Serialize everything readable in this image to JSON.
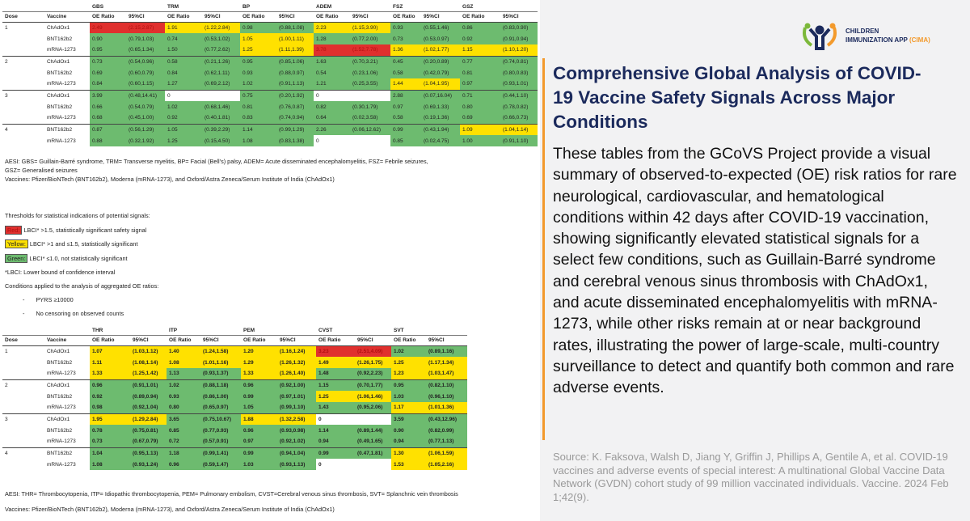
{
  "colors": {
    "red": "#e0302e",
    "yellow": "#ffe100",
    "green": "#6dbb6f",
    "accent": "#f39a2c",
    "title": "#1b2a5c"
  },
  "table_top": {
    "headers": {
      "dose": "Dose",
      "vaccine": "Vaccine",
      "oe": "OE Ratio",
      "ci": "95%CI"
    },
    "conditions": [
      "GBS",
      "TRM",
      "BP",
      "ADEM",
      "FSZ",
      "GSZ"
    ],
    "rows": [
      {
        "dose": "1",
        "vaccine": "ChAdOx1",
        "cells": [
          [
            "2.49",
            "(2.15,2.87)",
            "r"
          ],
          [
            "1.91",
            "(1.22,2.84)",
            "y"
          ],
          [
            "0.98",
            "(0.88,1.08)",
            "g"
          ],
          [
            "2.23",
            "(1.15,3.90)",
            "y"
          ],
          [
            "0.93",
            "(0.55,1.46)",
            "g"
          ],
          [
            "0.86",
            "(0.83,0.90)",
            "g"
          ]
        ]
      },
      {
        "dose": "",
        "vaccine": "BNT162b2",
        "cells": [
          [
            "0.90",
            "(0.79,1.03)",
            "g"
          ],
          [
            "0.74",
            "(0.53,1.02)",
            "g"
          ],
          [
            "1.05",
            "(1.00,1.11)",
            "y"
          ],
          [
            "1.28",
            "(0.77,2.00)",
            "g"
          ],
          [
            "0.73",
            "(0.53,0.97)",
            "g"
          ],
          [
            "0.92",
            "(0.91,0.94)",
            "g"
          ]
        ]
      },
      {
        "dose": "",
        "vaccine": "mRNA-1273",
        "cells": [
          [
            "0.95",
            "(0.65,1.34)",
            "g"
          ],
          [
            "1.50",
            "(0.77,2.62)",
            "g"
          ],
          [
            "1.25",
            "(1.11,1.39)",
            "y"
          ],
          [
            "3.78",
            "(1.52,7.78)",
            "r"
          ],
          [
            "1.36",
            "(1.02,1.77)",
            "y"
          ],
          [
            "1.15",
            "(1.10,1.20)",
            "y"
          ]
        ]
      },
      {
        "dose": "2",
        "vaccine": "ChAdOx1",
        "cells": [
          [
            "0.73",
            "(0.54,0.96)",
            "g"
          ],
          [
            "0.58",
            "(0.21,1.26)",
            "g"
          ],
          [
            "0.95",
            "(0.85,1.06)",
            "g"
          ],
          [
            "1.63",
            "(0.70,3.21)",
            "g"
          ],
          [
            "0.45",
            "(0.20,0.89)",
            "g"
          ],
          [
            "0.77",
            "(0.74,0.81)",
            "g"
          ]
        ]
      },
      {
        "dose": "",
        "vaccine": "BNT162b2",
        "cells": [
          [
            "0.69",
            "(0.60,0.79)",
            "g"
          ],
          [
            "0.84",
            "(0.62,1.11)",
            "g"
          ],
          [
            "0.93",
            "(0.88,0.97)",
            "g"
          ],
          [
            "0.54",
            "(0.23,1.06)",
            "g"
          ],
          [
            "0.58",
            "(0.42,0.79)",
            "g"
          ],
          [
            "0.81",
            "(0.80,0.83)",
            "g"
          ]
        ]
      },
      {
        "dose": "",
        "vaccine": "mRNA-1273",
        "cells": [
          [
            "0.84",
            "(0.60,1.15)",
            "g"
          ],
          [
            "1.27",
            "(0.69,2.12)",
            "g"
          ],
          [
            "1.02",
            "(0.91,1.13)",
            "g"
          ],
          [
            "1.21",
            "(0.25,3.55)",
            "g"
          ],
          [
            "1.44",
            "(1.04,1.95)",
            "y"
          ],
          [
            "0.97",
            "(0.93,1.01)",
            "g"
          ]
        ]
      },
      {
        "dose": "3",
        "vaccine": "ChAdOx1",
        "cells": [
          [
            "3.99",
            "(0.48,14.41)",
            "g"
          ],
          [
            "0",
            "",
            "w"
          ],
          [
            "0.75",
            "(0.20,1.92)",
            "g"
          ],
          [
            "0",
            "",
            "w"
          ],
          [
            "2.88",
            "(0.07,16.04)",
            "g"
          ],
          [
            "0.71",
            "(0.44,1.10)",
            "g"
          ]
        ]
      },
      {
        "dose": "",
        "vaccine": "BNT162b2",
        "cells": [
          [
            "0.66",
            "(0.54,0.79)",
            "g"
          ],
          [
            "1.02",
            "(0.68,1.46)",
            "g"
          ],
          [
            "0.81",
            "(0.76,0.87)",
            "g"
          ],
          [
            "0.82",
            "(0.30,1.79)",
            "g"
          ],
          [
            "0.97",
            "(0.69,1.33)",
            "g"
          ],
          [
            "0.80",
            "(0.78,0.82)",
            "g"
          ]
        ]
      },
      {
        "dose": "",
        "vaccine": "mRNA-1273",
        "cells": [
          [
            "0.68",
            "(0.45,1.00)",
            "g"
          ],
          [
            "0.92",
            "(0.40,1.81)",
            "g"
          ],
          [
            "0.83",
            "(0.74,0.94)",
            "g"
          ],
          [
            "0.64",
            "(0.02,3.58)",
            "g"
          ],
          [
            "0.58",
            "(0.19,1.36)",
            "g"
          ],
          [
            "0.69",
            "(0.66,0.73)",
            "g"
          ]
        ]
      },
      {
        "dose": "4",
        "vaccine": "BNT162b2",
        "cells": [
          [
            "0.87",
            "(0.56,1.29)",
            "g"
          ],
          [
            "1.05",
            "(0.39,2.29)",
            "g"
          ],
          [
            "1.14",
            "(0.99,1.29)",
            "g"
          ],
          [
            "2.26",
            "(0.06,12.62)",
            "g"
          ],
          [
            "0.99",
            "(0.43,1.94)",
            "g"
          ],
          [
            "1.09",
            "(1.04,1.14)",
            "y"
          ]
        ]
      },
      {
        "dose": "",
        "vaccine": "mRNA-1273",
        "cells": [
          [
            "0.88",
            "(0.32,1.92)",
            "g"
          ],
          [
            "1.25",
            "(0.15,4.50)",
            "g"
          ],
          [
            "1.08",
            "(0.83,1.38)",
            "g"
          ],
          [
            "0",
            "",
            "w"
          ],
          [
            "0.85",
            "(0.02,4.75)",
            "g"
          ],
          [
            "1.00",
            "(0.91,1.10)",
            "g"
          ]
        ]
      }
    ]
  },
  "notes_top": {
    "aesi": "AESI: GBS= Guillain-Barré syndrome, TRM= Transverse myelitis, BP= Facial (Bell's) palsy, ADEM= Acute disseminated encephalomyelitis, FSZ= Febrile seizures,",
    "aesi2": "GSZ= Generalised seizures",
    "vaccines": "Vaccines: Pfizer/BioNTech (BNT162b2), Moderna (mRNA-1273), and Oxford/Astra Zeneca/Serum Institute of India (ChAdOx1)",
    "thresholds": "Thresholds for statistical indications of potential signals:",
    "red_tag": "Red:",
    "red_text": "LBCI* >1.5, statistically significant safety signal",
    "yellow_tag": "Yellow:",
    "yellow_text": "LBCI* >1 and ≤1.5, statistically significant",
    "green_tag": "Green:",
    "green_text": "LBCI* ≤1.0, not statistically significant",
    "lbci": "*LBCI: Lower bound of confidence interval",
    "conditions": "Conditions applied to the analysis of aggregated OE ratios:",
    "cond1": "PYRS ≥10000",
    "cond2": "No censoring on observed counts",
    "dash": "-"
  },
  "table_bottom": {
    "conditions": [
      "THR",
      "ITP",
      "PEM",
      "CVST",
      "SVT"
    ],
    "rows": [
      {
        "dose": "1",
        "vaccine": "ChAdOx1",
        "cells": [
          [
            "1.07",
            "(1.03,1.12)",
            "y"
          ],
          [
            "1.40",
            "(1.24,1.58)",
            "y"
          ],
          [
            "1.20",
            "(1.16,1.24)",
            "y"
          ],
          [
            "3.23",
            "(2.51,4.09)",
            "r"
          ],
          [
            "1.02",
            "(0.89,1.16)",
            "g"
          ]
        ]
      },
      {
        "dose": "",
        "vaccine": "BNT162b2",
        "cells": [
          [
            "1.11",
            "(1.08,1.14)",
            "y"
          ],
          [
            "1.08",
            "(1.01,1.16)",
            "y"
          ],
          [
            "1.29",
            "(1.26,1.32)",
            "y"
          ],
          [
            "1.49",
            "(1.26,1.75)",
            "y"
          ],
          [
            "1.25",
            "(1.17,1.34)",
            "y"
          ]
        ]
      },
      {
        "dose": "",
        "vaccine": "mRNA-1273",
        "cells": [
          [
            "1.33",
            "(1.25,1.42)",
            "y"
          ],
          [
            "1.13",
            "(0.93,1.37)",
            "g"
          ],
          [
            "1.33",
            "(1.26,1.40)",
            "y"
          ],
          [
            "1.48",
            "(0.92,2.23)",
            "g"
          ],
          [
            "1.23",
            "(1.03,1.47)",
            "y"
          ]
        ]
      },
      {
        "dose": "2",
        "vaccine": "ChAdOx1",
        "cells": [
          [
            "0.96",
            "(0.91,1.01)",
            "g"
          ],
          [
            "1.02",
            "(0.88,1.18)",
            "g"
          ],
          [
            "0.96",
            "(0.92,1.00)",
            "g"
          ],
          [
            "1.15",
            "(0.70,1.77)",
            "g"
          ],
          [
            "0.95",
            "(0.82,1.10)",
            "g"
          ]
        ]
      },
      {
        "dose": "",
        "vaccine": "BNT162b2",
        "cells": [
          [
            "0.92",
            "(0.89,0.94)",
            "g"
          ],
          [
            "0.93",
            "(0.86,1.00)",
            "g"
          ],
          [
            "0.99",
            "(0.97,1.01)",
            "g"
          ],
          [
            "1.25",
            "(1.06,1.46)",
            "y"
          ],
          [
            "1.03",
            "(0.96,1.10)",
            "g"
          ]
        ]
      },
      {
        "dose": "",
        "vaccine": "mRNA-1273",
        "cells": [
          [
            "0.98",
            "(0.92,1.04)",
            "g"
          ],
          [
            "0.80",
            "(0.65,0.97)",
            "g"
          ],
          [
            "1.05",
            "(0.99,1.10)",
            "g"
          ],
          [
            "1.43",
            "(0.95,2.06)",
            "g"
          ],
          [
            "1.17",
            "(1.01,1.36)",
            "y"
          ]
        ]
      },
      {
        "dose": "3",
        "vaccine": "ChAdOx1",
        "cells": [
          [
            "1.95",
            "(1.29,2.84)",
            "y"
          ],
          [
            "3.65",
            "(0.75,10.67)",
            "g"
          ],
          [
            "1.88",
            "(1.32,2.58)",
            "y"
          ],
          [
            "0",
            "",
            "w"
          ],
          [
            "3.59",
            "(0.43,12.96)",
            "g"
          ]
        ]
      },
      {
        "dose": "",
        "vaccine": "BNT162b2",
        "cells": [
          [
            "0.78",
            "(0.75,0.81)",
            "g"
          ],
          [
            "0.85",
            "(0.77,0.93)",
            "g"
          ],
          [
            "0.96",
            "(0.93,0.98)",
            "g"
          ],
          [
            "1.14",
            "(0.89,1.44)",
            "g"
          ],
          [
            "0.90",
            "(0.82,0.99)",
            "g"
          ]
        ]
      },
      {
        "dose": "",
        "vaccine": "mRNA-1273",
        "cells": [
          [
            "0.73",
            "(0.67,0.79)",
            "g"
          ],
          [
            "0.72",
            "(0.57,0.91)",
            "g"
          ],
          [
            "0.97",
            "(0.92,1.02)",
            "g"
          ],
          [
            "0.94",
            "(0.49,1.65)",
            "g"
          ],
          [
            "0.94",
            "(0.77,1.13)",
            "g"
          ]
        ]
      },
      {
        "dose": "4",
        "vaccine": "BNT162b2",
        "cells": [
          [
            "1.04",
            "(0.95,1.13)",
            "g"
          ],
          [
            "1.18",
            "(0.99,1.41)",
            "g"
          ],
          [
            "0.99",
            "(0.94,1.04)",
            "g"
          ],
          [
            "0.99",
            "(0.47,1.81)",
            "g"
          ],
          [
            "1.30",
            "(1.06,1.59)",
            "y"
          ]
        ]
      },
      {
        "dose": "",
        "vaccine": "mRNA-1273",
        "cells": [
          [
            "1.08",
            "(0.93,1.24)",
            "g"
          ],
          [
            "0.96",
            "(0.59,1.47)",
            "g"
          ],
          [
            "1.03",
            "(0.93,1.13)",
            "g"
          ],
          [
            "0",
            "",
            "w"
          ],
          [
            "1.53",
            "(1.05,2.16)",
            "y"
          ]
        ]
      }
    ]
  },
  "notes_bottom": {
    "aesi": "AESI: THR= Thrombocytopenia, ITP= Idiopathic thrombocytopenia, PEM= Pulmonary embolism, CVST=Cerebral venous sinus thrombosis, SVT= Splanchnic vein thrombosis",
    "vaccines": "Vaccines: Pfizer/BioNTech (BNT162b2), Moderna (mRNA-1273), and Oxford/Astra Zeneca/Serum Institute of India (ChAdOx1)"
  },
  "logo": {
    "line1": "CHILDREN",
    "line2": "IMMUNIZATION APP",
    "abbr": "(CIMA)"
  },
  "article": {
    "title": "Comprehensive Global Analysis of COVID-19 Vaccine Safety Signals Across Major Conditions",
    "body": "These tables from the GCoVS Project provide a visual summary of observed-to-expected (OE) risk ratios for rare neurological, cardiovascular, and hematological conditions within 42 days after COVID-19 vaccination, showing significantly elevated statistical signals for a select few conditions, such as Guillain-Barré syndrome and cerebral venous sinus thrombosis with ChAdOx1, and acute disseminated encephalomyelitis with mRNA-1273, while other risks remain at or near background rates, illustrating the power of large-scale, multi-country surveillance to detect and quantify both common and rare adverse events.",
    "source": "Source: K. Faksova, Walsh D, Jiang Y, Griffin J, Phillips A, Gentile A, et al. COVID-19 vaccines and adverse events of special interest: A multinational Global Vaccine Data Network (GVDN) cohort study of 99 million vaccinated individuals. Vaccine. 2024 Feb 1;42(9)."
  }
}
